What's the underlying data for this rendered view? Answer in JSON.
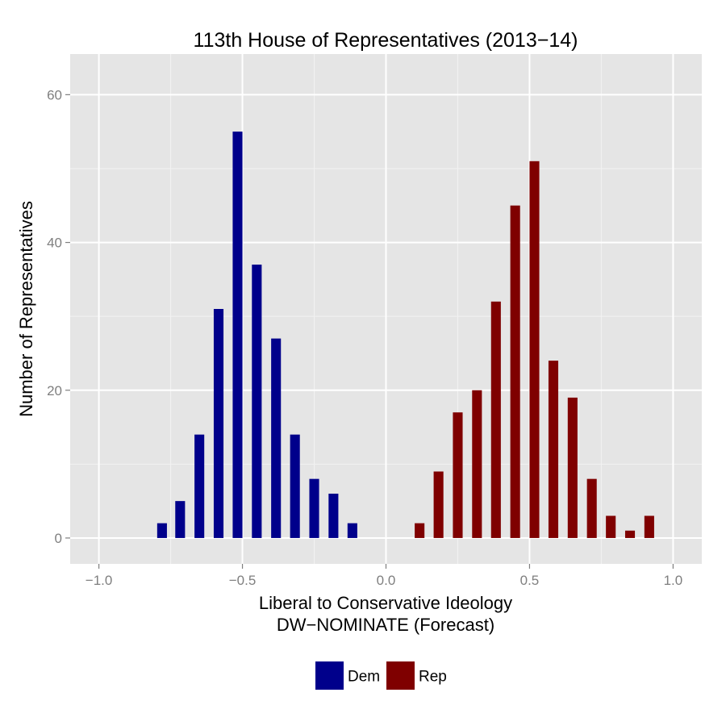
{
  "chart_data": {
    "type": "bar",
    "title": "113th House of Representatives (2013−14)",
    "xlabel": "Liberal to Conservative Ideology",
    "xlabel2": "DW−NOMINATE (Forecast)",
    "ylabel": "Number of Representatives",
    "xlim": [
      -1.1,
      1.1
    ],
    "ylim": [
      -3.5,
      65.5
    ],
    "xticks": [
      -1.0,
      -0.5,
      0.0,
      0.5,
      1.0
    ],
    "xtick_labels": [
      "−1.0",
      "−0.5",
      "0.0",
      "0.5",
      "1.0"
    ],
    "yticks": [
      0,
      20,
      40,
      60
    ],
    "ytick_labels": [
      "0",
      "20",
      "40",
      "60"
    ],
    "grid": true,
    "legend_position": "bottom",
    "bar_width": 0.034,
    "series": [
      {
        "name": "Dem",
        "color": "#00008b",
        "x": [
          -0.78,
          -0.717,
          -0.65,
          -0.583,
          -0.517,
          -0.45,
          -0.383,
          -0.317,
          -0.25,
          -0.183,
          -0.117
        ],
        "values": [
          2,
          5,
          14,
          31,
          55,
          37,
          27,
          14,
          8,
          6,
          2
        ]
      },
      {
        "name": "Rep",
        "color": "#7f0000",
        "x": [
          0.117,
          0.183,
          0.25,
          0.317,
          0.383,
          0.45,
          0.517,
          0.583,
          0.65,
          0.717,
          0.783,
          0.85,
          0.917
        ],
        "values": [
          2,
          9,
          17,
          20,
          32,
          45,
          51,
          24,
          19,
          8,
          3,
          1,
          3
        ]
      }
    ]
  }
}
